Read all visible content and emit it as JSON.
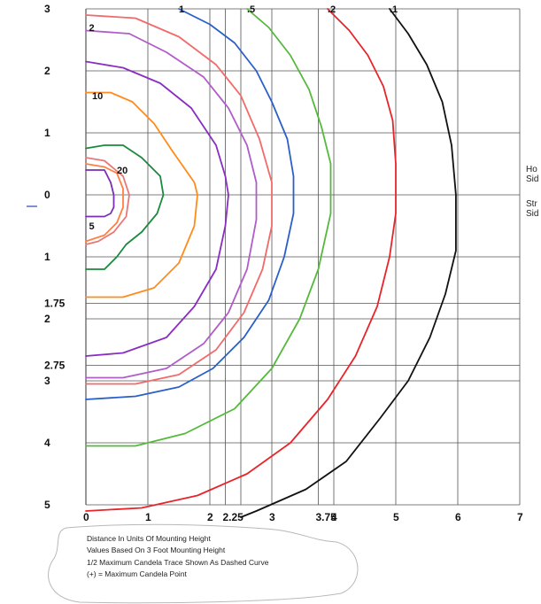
{
  "chart_data": {
    "type": "line",
    "title": "",
    "xlim": [
      0,
      7
    ],
    "ylim": [
      -5,
      3
    ],
    "x_tick_labels": [
      {
        "value": 0,
        "label": "0"
      },
      {
        "value": 1,
        "label": "1"
      },
      {
        "value": 2,
        "label": "2"
      },
      {
        "value": 2.25,
        "label": "2.25"
      },
      {
        "value": 3,
        "label": "3"
      },
      {
        "value": 3.75,
        "label": "3.75"
      },
      {
        "value": 4,
        "label": "4"
      },
      {
        "value": 5,
        "label": "5"
      },
      {
        "value": 6,
        "label": "6"
      },
      {
        "value": 7,
        "label": "7"
      }
    ],
    "y_tick_labels": [
      {
        "value": 3,
        "label": "3"
      },
      {
        "value": 2,
        "label": "2"
      },
      {
        "value": 1,
        "label": "1"
      },
      {
        "value": 0,
        "label": "0"
      },
      {
        "value": -1,
        "label": "1"
      },
      {
        "value": -1.75,
        "label": "1.75"
      },
      {
        "value": -2,
        "label": "2"
      },
      {
        "value": -2.75,
        "label": "2.75"
      },
      {
        "value": -3,
        "label": "3"
      },
      {
        "value": -4,
        "label": "4"
      },
      {
        "value": -5,
        "label": "5"
      }
    ],
    "vertical_gridlines": [
      0,
      1,
      2,
      2.25,
      2.5,
      3,
      3.75,
      4,
      5,
      6,
      7
    ],
    "horizontal_gridlines": [
      3,
      2,
      1,
      0,
      -1,
      -1.75,
      -2,
      -2.75,
      -3,
      -4,
      -5
    ],
    "curve_labels": [
      {
        "text": "1",
        "x": 1.5,
        "y": 3.0
      },
      {
        "text": ".5",
        "x": 2.6,
        "y": 3.0
      },
      {
        "text": ".2",
        "x": 3.9,
        "y": 3.0
      },
      {
        "text": ".1",
        "x": 4.9,
        "y": 3.0
      },
      {
        "text": "2",
        "x": 0.05,
        "y": 2.7
      },
      {
        "text": "10",
        "x": 0.1,
        "y": 1.6
      },
      {
        "text": "20",
        "x": 0.5,
        "y": 0.4
      },
      {
        "text": "5",
        "x": 0.05,
        "y": -0.5
      }
    ],
    "series": [
      {
        "color": "#7b2fb5",
        "points": [
          [
            0,
            0.4
          ],
          [
            0.3,
            0.4
          ],
          [
            0.4,
            0.2
          ],
          [
            0.45,
            0
          ],
          [
            0.45,
            -0.2
          ],
          [
            0.4,
            -0.3
          ],
          [
            0.3,
            -0.35
          ],
          [
            0,
            -0.35
          ]
        ]
      },
      {
        "color": "#ff8040",
        "points": [
          [
            0,
            0.5
          ],
          [
            0.3,
            0.45
          ],
          [
            0.5,
            0.35
          ],
          [
            0.6,
            0.1
          ],
          [
            0.6,
            -0.2
          ],
          [
            0.5,
            -0.45
          ],
          [
            0.3,
            -0.65
          ],
          [
            0,
            -0.75
          ]
        ]
      },
      {
        "color": "#e87878",
        "points": [
          [
            0,
            0.6
          ],
          [
            0.3,
            0.55
          ],
          [
            0.6,
            0.3
          ],
          [
            0.7,
            0
          ],
          [
            0.65,
            -0.35
          ],
          [
            0.45,
            -0.6
          ],
          [
            0.2,
            -0.75
          ],
          [
            0,
            -0.8
          ]
        ]
      },
      {
        "color": "#1a8a3c",
        "points": [
          [
            0,
            0.75
          ],
          [
            0.3,
            0.8
          ],
          [
            0.6,
            0.8
          ],
          [
            0.9,
            0.6
          ],
          [
            1.2,
            0.3
          ],
          [
            1.25,
            0
          ],
          [
            1.15,
            -0.3
          ],
          [
            0.9,
            -0.6
          ],
          [
            0.65,
            -0.8
          ],
          [
            0.5,
            -1.0
          ],
          [
            0.3,
            -1.2
          ],
          [
            0,
            -1.2
          ]
        ]
      },
      {
        "color": "#ff8c1a",
        "points": [
          [
            0,
            1.65
          ],
          [
            0.4,
            1.65
          ],
          [
            0.75,
            1.5
          ],
          [
            1.1,
            1.15
          ],
          [
            1.4,
            0.7
          ],
          [
            1.75,
            0.2
          ],
          [
            1.8,
            0
          ],
          [
            1.75,
            -0.5
          ],
          [
            1.5,
            -1.1
          ],
          [
            1.1,
            -1.5
          ],
          [
            0.6,
            -1.65
          ],
          [
            0,
            -1.65
          ]
        ]
      },
      {
        "color": "#8a2dc2",
        "points": [
          [
            0,
            2.15
          ],
          [
            0.6,
            2.05
          ],
          [
            1.2,
            1.8
          ],
          [
            1.7,
            1.4
          ],
          [
            2.1,
            0.8
          ],
          [
            2.25,
            0.3
          ],
          [
            2.3,
            0
          ],
          [
            2.25,
            -0.5
          ],
          [
            2.1,
            -1.2
          ],
          [
            1.75,
            -1.8
          ],
          [
            1.3,
            -2.3
          ],
          [
            0.6,
            -2.55
          ],
          [
            0,
            -2.6
          ]
        ]
      },
      {
        "color": "#b05cc9",
        "points": [
          [
            0,
            2.65
          ],
          [
            0.7,
            2.6
          ],
          [
            1.3,
            2.3
          ],
          [
            1.9,
            1.9
          ],
          [
            2.3,
            1.4
          ],
          [
            2.6,
            0.8
          ],
          [
            2.75,
            0.2
          ],
          [
            2.75,
            -0.4
          ],
          [
            2.6,
            -1.2
          ],
          [
            2.3,
            -1.9
          ],
          [
            1.9,
            -2.4
          ],
          [
            1.3,
            -2.8
          ],
          [
            0.6,
            -2.95
          ],
          [
            0,
            -2.95
          ]
        ]
      },
      {
        "color": "#f26a6a",
        "points": [
          [
            0,
            2.9
          ],
          [
            0.8,
            2.85
          ],
          [
            1.5,
            2.55
          ],
          [
            2.1,
            2.1
          ],
          [
            2.5,
            1.6
          ],
          [
            2.8,
            0.9
          ],
          [
            3.0,
            0.2
          ],
          [
            3.0,
            -0.5
          ],
          [
            2.85,
            -1.2
          ],
          [
            2.55,
            -1.9
          ],
          [
            2.1,
            -2.5
          ],
          [
            1.5,
            -2.9
          ],
          [
            0.8,
            -3.05
          ],
          [
            0,
            -3.05
          ]
        ]
      },
      {
        "color": "#2a5fc9",
        "points": [
          [
            1.5,
            3.0
          ],
          [
            2.0,
            2.75
          ],
          [
            2.4,
            2.45
          ],
          [
            2.75,
            2.0
          ],
          [
            3.0,
            1.5
          ],
          [
            3.25,
            0.9
          ],
          [
            3.35,
            0.3
          ],
          [
            3.35,
            -0.3
          ],
          [
            3.2,
            -1.0
          ],
          [
            2.95,
            -1.7
          ],
          [
            2.55,
            -2.3
          ],
          [
            2.05,
            -2.8
          ],
          [
            1.5,
            -3.1
          ],
          [
            0.8,
            -3.25
          ],
          [
            0,
            -3.3
          ]
        ]
      },
      {
        "color": "#55b93c",
        "points": [
          [
            2.6,
            3.0
          ],
          [
            2.95,
            2.7
          ],
          [
            3.3,
            2.25
          ],
          [
            3.6,
            1.7
          ],
          [
            3.8,
            1.1
          ],
          [
            3.95,
            0.5
          ],
          [
            3.95,
            -0.3
          ],
          [
            3.75,
            -1.2
          ],
          [
            3.45,
            -2.0
          ],
          [
            3.0,
            -2.8
          ],
          [
            2.4,
            -3.45
          ],
          [
            1.6,
            -3.85
          ],
          [
            0.8,
            -4.05
          ],
          [
            0,
            -4.05
          ]
        ]
      },
      {
        "color": "#e8242a",
        "points": [
          [
            3.9,
            3.0
          ],
          [
            4.25,
            2.65
          ],
          [
            4.55,
            2.25
          ],
          [
            4.8,
            1.75
          ],
          [
            4.95,
            1.2
          ],
          [
            5.0,
            0.5
          ],
          [
            5.0,
            -0.3
          ],
          [
            4.9,
            -1.0
          ],
          [
            4.7,
            -1.8
          ],
          [
            4.35,
            -2.6
          ],
          [
            3.9,
            -3.3
          ],
          [
            3.3,
            -4.0
          ],
          [
            2.6,
            -4.5
          ],
          [
            1.8,
            -4.85
          ],
          [
            0.9,
            -5.05
          ],
          [
            0,
            -5.1
          ]
        ]
      },
      {
        "color": "#111111",
        "points": [
          [
            4.9,
            3.0
          ],
          [
            5.2,
            2.6
          ],
          [
            5.5,
            2.1
          ],
          [
            5.75,
            1.5
          ],
          [
            5.9,
            0.8
          ],
          [
            5.97,
            0
          ],
          [
            5.97,
            -0.9
          ],
          [
            5.8,
            -1.6
          ],
          [
            5.55,
            -2.3
          ],
          [
            5.2,
            -3.0
          ],
          [
            4.75,
            -3.6
          ],
          [
            4.2,
            -4.3
          ],
          [
            3.55,
            -4.75
          ],
          [
            2.75,
            -5.1
          ],
          [
            2.5,
            -5.2
          ]
        ]
      }
    ]
  },
  "side_labels": {
    "house_side": "Ho\nSid",
    "street_side": "Str\nSid"
  },
  "notes": [
    "Distance In Units Of Mounting Height",
    "Values Based On 3 Foot Mounting Height",
    "1/2 Maximum Candela Trace Shown As Dashed Curve",
    "(+) = Maximum Candela Point"
  ],
  "colors": {
    "grid": "#555555",
    "axis_marker": "#7f8fd6"
  }
}
